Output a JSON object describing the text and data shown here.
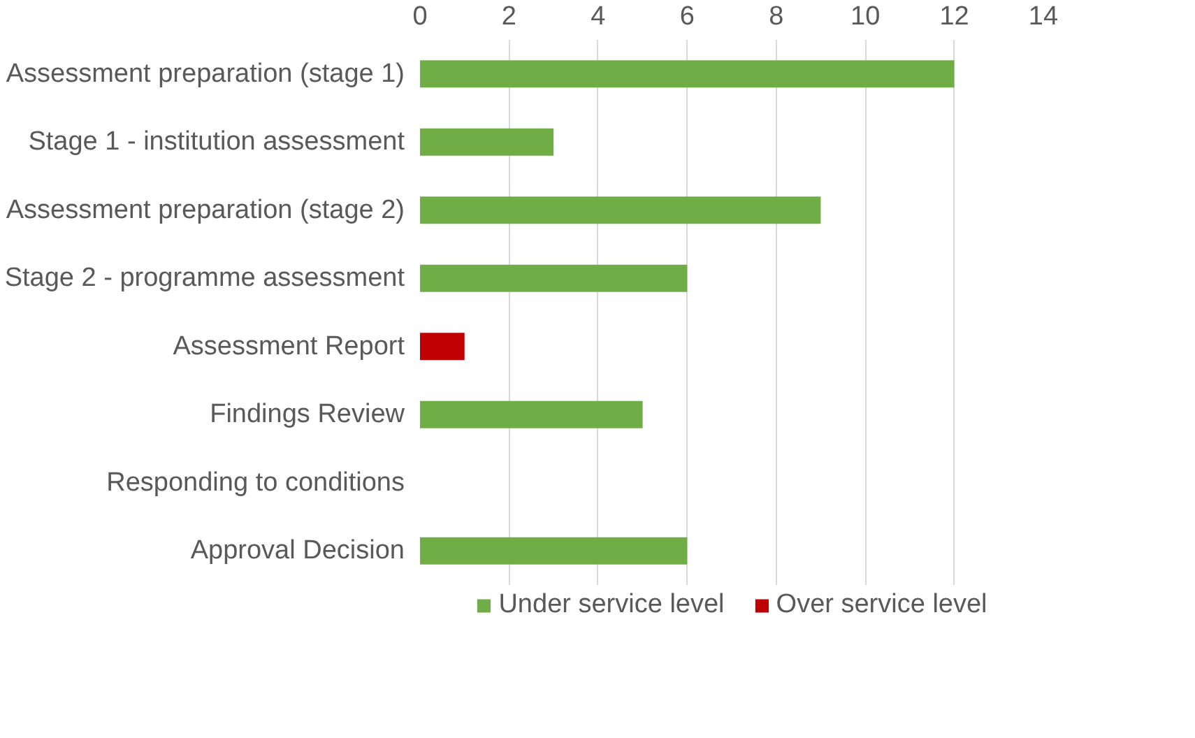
{
  "chart_data": {
    "type": "bar",
    "orientation": "horizontal",
    "stacked": true,
    "categories": [
      "Assessment preparation (stage 1)",
      "Stage 1 - institution assessment",
      "Assessment preparation (stage 2)",
      "Stage 2 - programme assessment",
      "Assessment Report",
      "Findings Review",
      "Responding to conditions",
      "Approval Decision"
    ],
    "series": [
      {
        "name": "Under service level",
        "color": "#70ad47",
        "values": [
          12,
          3,
          9,
          6,
          null,
          5,
          null,
          6
        ]
      },
      {
        "name": "Over service level",
        "color": "#c00000",
        "values": [
          null,
          null,
          null,
          null,
          1,
          null,
          null,
          null
        ]
      }
    ],
    "xlim": [
      0,
      14
    ],
    "xticks": [
      0,
      2,
      4,
      6,
      8,
      10,
      12,
      14
    ],
    "grid": "x",
    "legend": "bottom"
  }
}
